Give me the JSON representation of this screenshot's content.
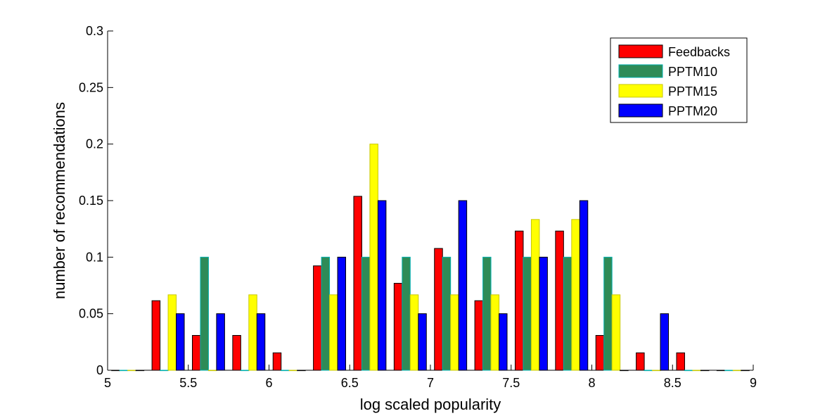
{
  "chart_data": {
    "type": "bar",
    "xlabel": "log scaled popularity",
    "ylabel": "number of recommendations",
    "xlim": [
      5,
      9
    ],
    "ylim": [
      0,
      0.3
    ],
    "xticks": [
      "5",
      "5.5",
      "6",
      "6.5",
      "7",
      "7.5",
      "8",
      "8.5",
      "9"
    ],
    "yticks": [
      "0",
      "0.05",
      "0.1",
      "0.15",
      "0.2",
      "0.25",
      "0.3"
    ],
    "legend_position": "top-right",
    "bin_centers": [
      5.125,
      5.375,
      5.625,
      5.875,
      6.125,
      6.375,
      6.625,
      6.875,
      7.125,
      7.375,
      7.625,
      7.875,
      8.125,
      8.375,
      8.625,
      8.875
    ],
    "series": [
      {
        "name": "Feedbacks",
        "color": "#ff0000",
        "edge": "#000000",
        "values": [
          0,
          0.0615,
          0.0308,
          0.0308,
          0.0154,
          0.0923,
          0.1538,
          0.0769,
          0.1077,
          0.0615,
          0.1231,
          0.1231,
          0.0308,
          0.0154,
          0.0154,
          0
        ]
      },
      {
        "name": "PPTM10",
        "color": "#2e8b57",
        "edge": "#00b0b0",
        "values": [
          0,
          0,
          0.1,
          0,
          0,
          0.1,
          0.1,
          0.1,
          0.1,
          0.1,
          0.1,
          0.1,
          0.1,
          0,
          0,
          0
        ]
      },
      {
        "name": "PPTM15",
        "color": "#ffff00",
        "edge": "#c8c800",
        "values": [
          0,
          0.0667,
          0,
          0.0667,
          0,
          0.0667,
          0.2,
          0.0667,
          0.0667,
          0.0667,
          0.1333,
          0.1333,
          0.0667,
          0,
          0,
          0
        ]
      },
      {
        "name": "PPTM20",
        "color": "#0000ff",
        "edge": "#000000",
        "values": [
          0,
          0.05,
          0.05,
          0.05,
          0,
          0.1,
          0.15,
          0.05,
          0.15,
          0.05,
          0.1,
          0.15,
          0,
          0.05,
          0,
          0
        ]
      }
    ]
  }
}
